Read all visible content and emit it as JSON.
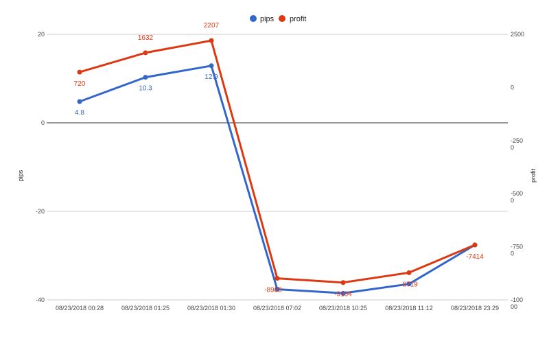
{
  "chart_data": {
    "type": "line",
    "categories": [
      "08/23/2018 00:28",
      "08/23/2018 01:25",
      "08/23/2018 01:30",
      "08/23/2018 07:02",
      "08/23/2018 10:25",
      "08/23/2018 11:12",
      "08/23/2018 23:29"
    ],
    "series": [
      {
        "name": "pips",
        "axis": "left",
        "color": "#3366cc",
        "values": [
          4.8,
          10.3,
          12.9,
          -37.6,
          -38.5,
          -36.4,
          -27.6
        ],
        "data_labels": [
          "4.8",
          "10.3",
          "12.9",
          "",
          "",
          "",
          ""
        ]
      },
      {
        "name": "profit",
        "axis": "right",
        "color": "#dc3912",
        "values": [
          720,
          1632,
          2207,
          -8985,
          -9184,
          -8719,
          -7414
        ],
        "data_labels": [
          "720",
          "1632",
          "2207",
          "-8985",
          "-9184",
          "-8719",
          "-7414"
        ]
      }
    ],
    "left_axis": {
      "title": "pips",
      "range": [
        -40,
        20
      ],
      "ticks": [
        {
          "value": 20,
          "label": "20"
        },
        {
          "value": 0,
          "label": "0"
        },
        {
          "value": -20,
          "label": "-20"
        },
        {
          "value": -40,
          "label": "-40"
        }
      ]
    },
    "right_axis": {
      "title": "profit",
      "range": [
        -10000,
        2500
      ],
      "ticks": [
        {
          "value": 2500,
          "label": "2500"
        },
        {
          "value": 0,
          "label": "0"
        },
        {
          "value": -2500,
          "label": "-250\n0"
        },
        {
          "value": -5000,
          "label": "-500\n0"
        },
        {
          "value": -7500,
          "label": "-750\n0"
        },
        {
          "value": -10000,
          "label": "-100\n00"
        }
      ]
    },
    "grid": true,
    "legend_position": "top"
  }
}
